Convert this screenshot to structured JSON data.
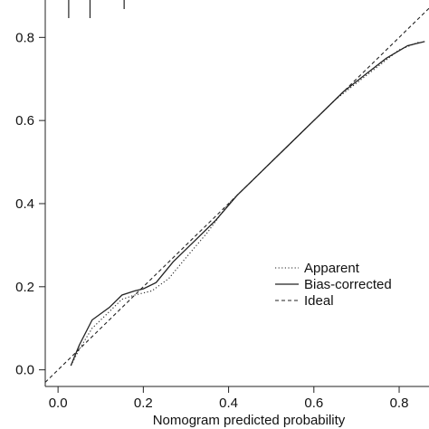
{
  "chart_data": {
    "type": "line",
    "title": "",
    "xlabel": "Nomogram predicted probability",
    "ylabel": "",
    "xlim": [
      -0.03,
      0.87
    ],
    "ylim": [
      -0.04,
      0.89
    ],
    "x_ticks": [
      {
        "value": 0.0,
        "label": "0.0"
      },
      {
        "value": 0.2,
        "label": "0.2"
      },
      {
        "value": 0.4,
        "label": "0.4"
      },
      {
        "value": 0.6,
        "label": "0.6"
      },
      {
        "value": 0.8,
        "label": "0.8"
      }
    ],
    "y_ticks": [
      {
        "value": 0.0,
        "label": "0.0"
      },
      {
        "value": 0.2,
        "label": "0.2"
      },
      {
        "value": 0.4,
        "label": "0.4"
      },
      {
        "value": 0.6,
        "label": "0.6"
      },
      {
        "value": 0.8,
        "label": "0.8"
      }
    ],
    "rug_x": [
      0.025,
      0.075,
      0.155
    ],
    "grid": false,
    "legend_position": "bottom-right",
    "series": [
      {
        "name": "Apparent",
        "style": "dotted",
        "x": [
          0.03,
          0.05,
          0.08,
          0.12,
          0.15,
          0.18,
          0.22,
          0.26,
          0.3,
          0.35,
          0.4,
          0.45,
          0.5,
          0.55,
          0.6,
          0.65,
          0.7,
          0.75,
          0.8,
          0.85
        ],
        "y": [
          0.01,
          0.05,
          0.1,
          0.14,
          0.17,
          0.18,
          0.19,
          0.22,
          0.27,
          0.33,
          0.4,
          0.45,
          0.5,
          0.55,
          0.6,
          0.65,
          0.69,
          0.73,
          0.77,
          0.79
        ]
      },
      {
        "name": "Bias-corrected",
        "style": "solid",
        "x": [
          0.03,
          0.05,
          0.08,
          0.12,
          0.15,
          0.18,
          0.2,
          0.23,
          0.27,
          0.32,
          0.37,
          0.42,
          0.47,
          0.52,
          0.57,
          0.62,
          0.67,
          0.72,
          0.77,
          0.82,
          0.86
        ],
        "y": [
          0.01,
          0.06,
          0.12,
          0.15,
          0.18,
          0.19,
          0.195,
          0.21,
          0.26,
          0.31,
          0.36,
          0.42,
          0.47,
          0.52,
          0.57,
          0.62,
          0.67,
          0.71,
          0.75,
          0.78,
          0.79
        ]
      },
      {
        "name": "Ideal",
        "style": "dashed",
        "x": [
          -0.03,
          0.87
        ],
        "y": [
          -0.03,
          0.87
        ]
      }
    ]
  }
}
